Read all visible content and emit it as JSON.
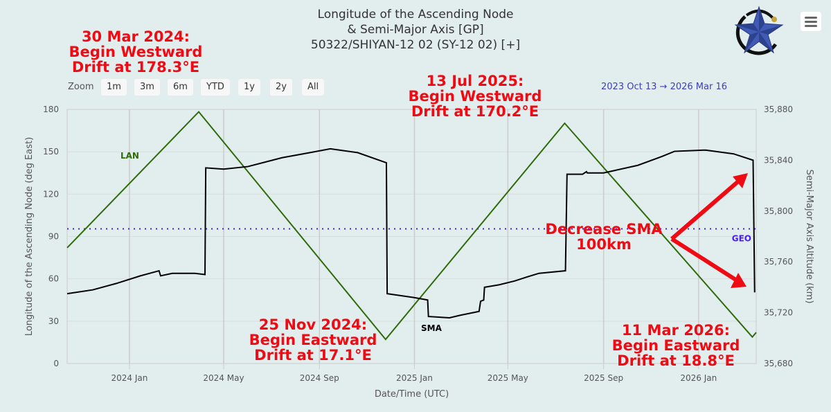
{
  "title": {
    "line1": "Longitude of the Ascending Node",
    "line2": "& Semi-Major Axis [GP]",
    "line3": "50322/SHIYAN-12 02 (SY-12 02) [+]"
  },
  "range_selector": {
    "label": "Zoom",
    "buttons": [
      "1m",
      "3m",
      "6m",
      "YTD",
      "1y",
      "2y",
      "All"
    ],
    "from": "2023 Oct 13",
    "arrow": "→",
    "to": "2026 Mar 16"
  },
  "menu_icon": "hamburger-icon",
  "annotations": [
    {
      "lines": [
        "30 Mar 2024:",
        "Begin Westward",
        "Drift at 178.3°E"
      ]
    },
    {
      "lines": [
        "13 Jul 2025:",
        "Begin Westward",
        "Drift at 170.2°E"
      ]
    },
    {
      "lines": [
        "25 Nov 2024:",
        "Begin Eastward",
        "Drift at 17.1°E"
      ]
    },
    {
      "lines": [
        "11 Mar 2026:",
        "Begin Eastward",
        "Drift at 18.8°E"
      ]
    },
    {
      "lines": [
        "Decrease SMA",
        "100km"
      ]
    }
  ],
  "colors": {
    "lan": "#2e6b0c",
    "sma": "#000000",
    "geo": "#4b1cf0",
    "annotation": "#ee0b14",
    "grid": "#cccccc"
  },
  "chart_data": {
    "type": "line",
    "xlabel": "Date/Time (UTC)",
    "ylabel_left": "Longitude of the Ascending Node (deg East)",
    "ylabel_right": "Semi-Major Axis Altitude (km)",
    "xrange": [
      "2023-10-13",
      "2026-03-16"
    ],
    "ylim_left": [
      0,
      180
    ],
    "ylim_right": [
      35680,
      35880
    ],
    "yticks_left": [
      0,
      30,
      60,
      90,
      120,
      150,
      180
    ],
    "yticks_right": [
      "35,680",
      "35,720",
      "35,760",
      "35,800",
      "35,840",
      "35,880"
    ],
    "yticks_right_values": [
      35680,
      35720,
      35760,
      35800,
      35840,
      35880
    ],
    "xticks": [
      {
        "date": "2024-01-01",
        "label": "2024 Jan"
      },
      {
        "date": "2024-05-01",
        "label": "2024 May"
      },
      {
        "date": "2024-09-01",
        "label": "2024 Sep"
      },
      {
        "date": "2025-01-01",
        "label": "2025 Jan"
      },
      {
        "date": "2025-05-01",
        "label": "2025 May"
      },
      {
        "date": "2025-09-01",
        "label": "2025 Sep"
      },
      {
        "date": "2026-01-01",
        "label": "2026 Jan"
      }
    ],
    "grid": true,
    "series": [
      {
        "name": "LAN",
        "axis": "left",
        "points": [
          [
            "2023-10-13",
            82
          ],
          [
            "2024-03-30",
            178.3
          ],
          [
            "2024-11-25",
            17.1
          ],
          [
            "2025-07-13",
            170.2
          ],
          [
            "2026-03-11",
            18.8
          ],
          [
            "2026-03-16",
            22
          ]
        ]
      },
      {
        "name": "SMA",
        "axis": "right",
        "points": [
          [
            "2023-10-13",
            35735
          ],
          [
            "2023-11-15",
            35738
          ],
          [
            "2023-12-15",
            35743
          ],
          [
            "2024-01-15",
            35749
          ],
          [
            "2024-02-08",
            35753
          ],
          [
            "2024-02-10",
            35749
          ],
          [
            "2024-02-25",
            35751
          ],
          [
            "2024-03-25",
            35751
          ],
          [
            "2024-04-07",
            35750
          ],
          [
            "2024-04-08",
            35834
          ],
          [
            "2024-05-01",
            35833
          ],
          [
            "2024-06-01",
            35835
          ],
          [
            "2024-07-15",
            35842
          ],
          [
            "2024-08-20",
            35846
          ],
          [
            "2024-09-15",
            35849
          ],
          [
            "2024-10-20",
            35846
          ],
          [
            "2024-11-26",
            35838
          ],
          [
            "2024-11-27",
            35735
          ],
          [
            "2024-12-31",
            35732
          ],
          [
            "2025-01-18",
            35730
          ],
          [
            "2025-01-19",
            35717
          ],
          [
            "2025-02-15",
            35716
          ],
          [
            "2025-03-01",
            35718
          ],
          [
            "2025-03-25",
            35721
          ],
          [
            "2025-03-27",
            35729
          ],
          [
            "2025-03-31",
            35730
          ],
          [
            "2025-04-01",
            35740
          ],
          [
            "2025-04-20",
            35742
          ],
          [
            "2025-05-10",
            35745
          ],
          [
            "2025-05-25",
            35748
          ],
          [
            "2025-06-10",
            35751
          ],
          [
            "2025-07-14",
            35753
          ],
          [
            "2025-07-16",
            35829
          ],
          [
            "2025-08-05",
            35829
          ],
          [
            "2025-08-10",
            35831
          ],
          [
            "2025-08-11",
            35830
          ],
          [
            "2025-09-01",
            35830
          ],
          [
            "2025-10-15",
            35836
          ],
          [
            "2025-11-15",
            35843
          ],
          [
            "2025-12-01",
            35847
          ],
          [
            "2026-01-10",
            35848
          ],
          [
            "2026-02-15",
            35845
          ],
          [
            "2026-03-12",
            35840
          ],
          [
            "2026-03-14",
            35736
          ]
        ]
      },
      {
        "name": "GEO",
        "axis": "right",
        "style": "dotted",
        "value": 35786
      }
    ],
    "series_labels": {
      "lan": "LAN",
      "sma": "SMA",
      "geo": "GEO"
    }
  }
}
